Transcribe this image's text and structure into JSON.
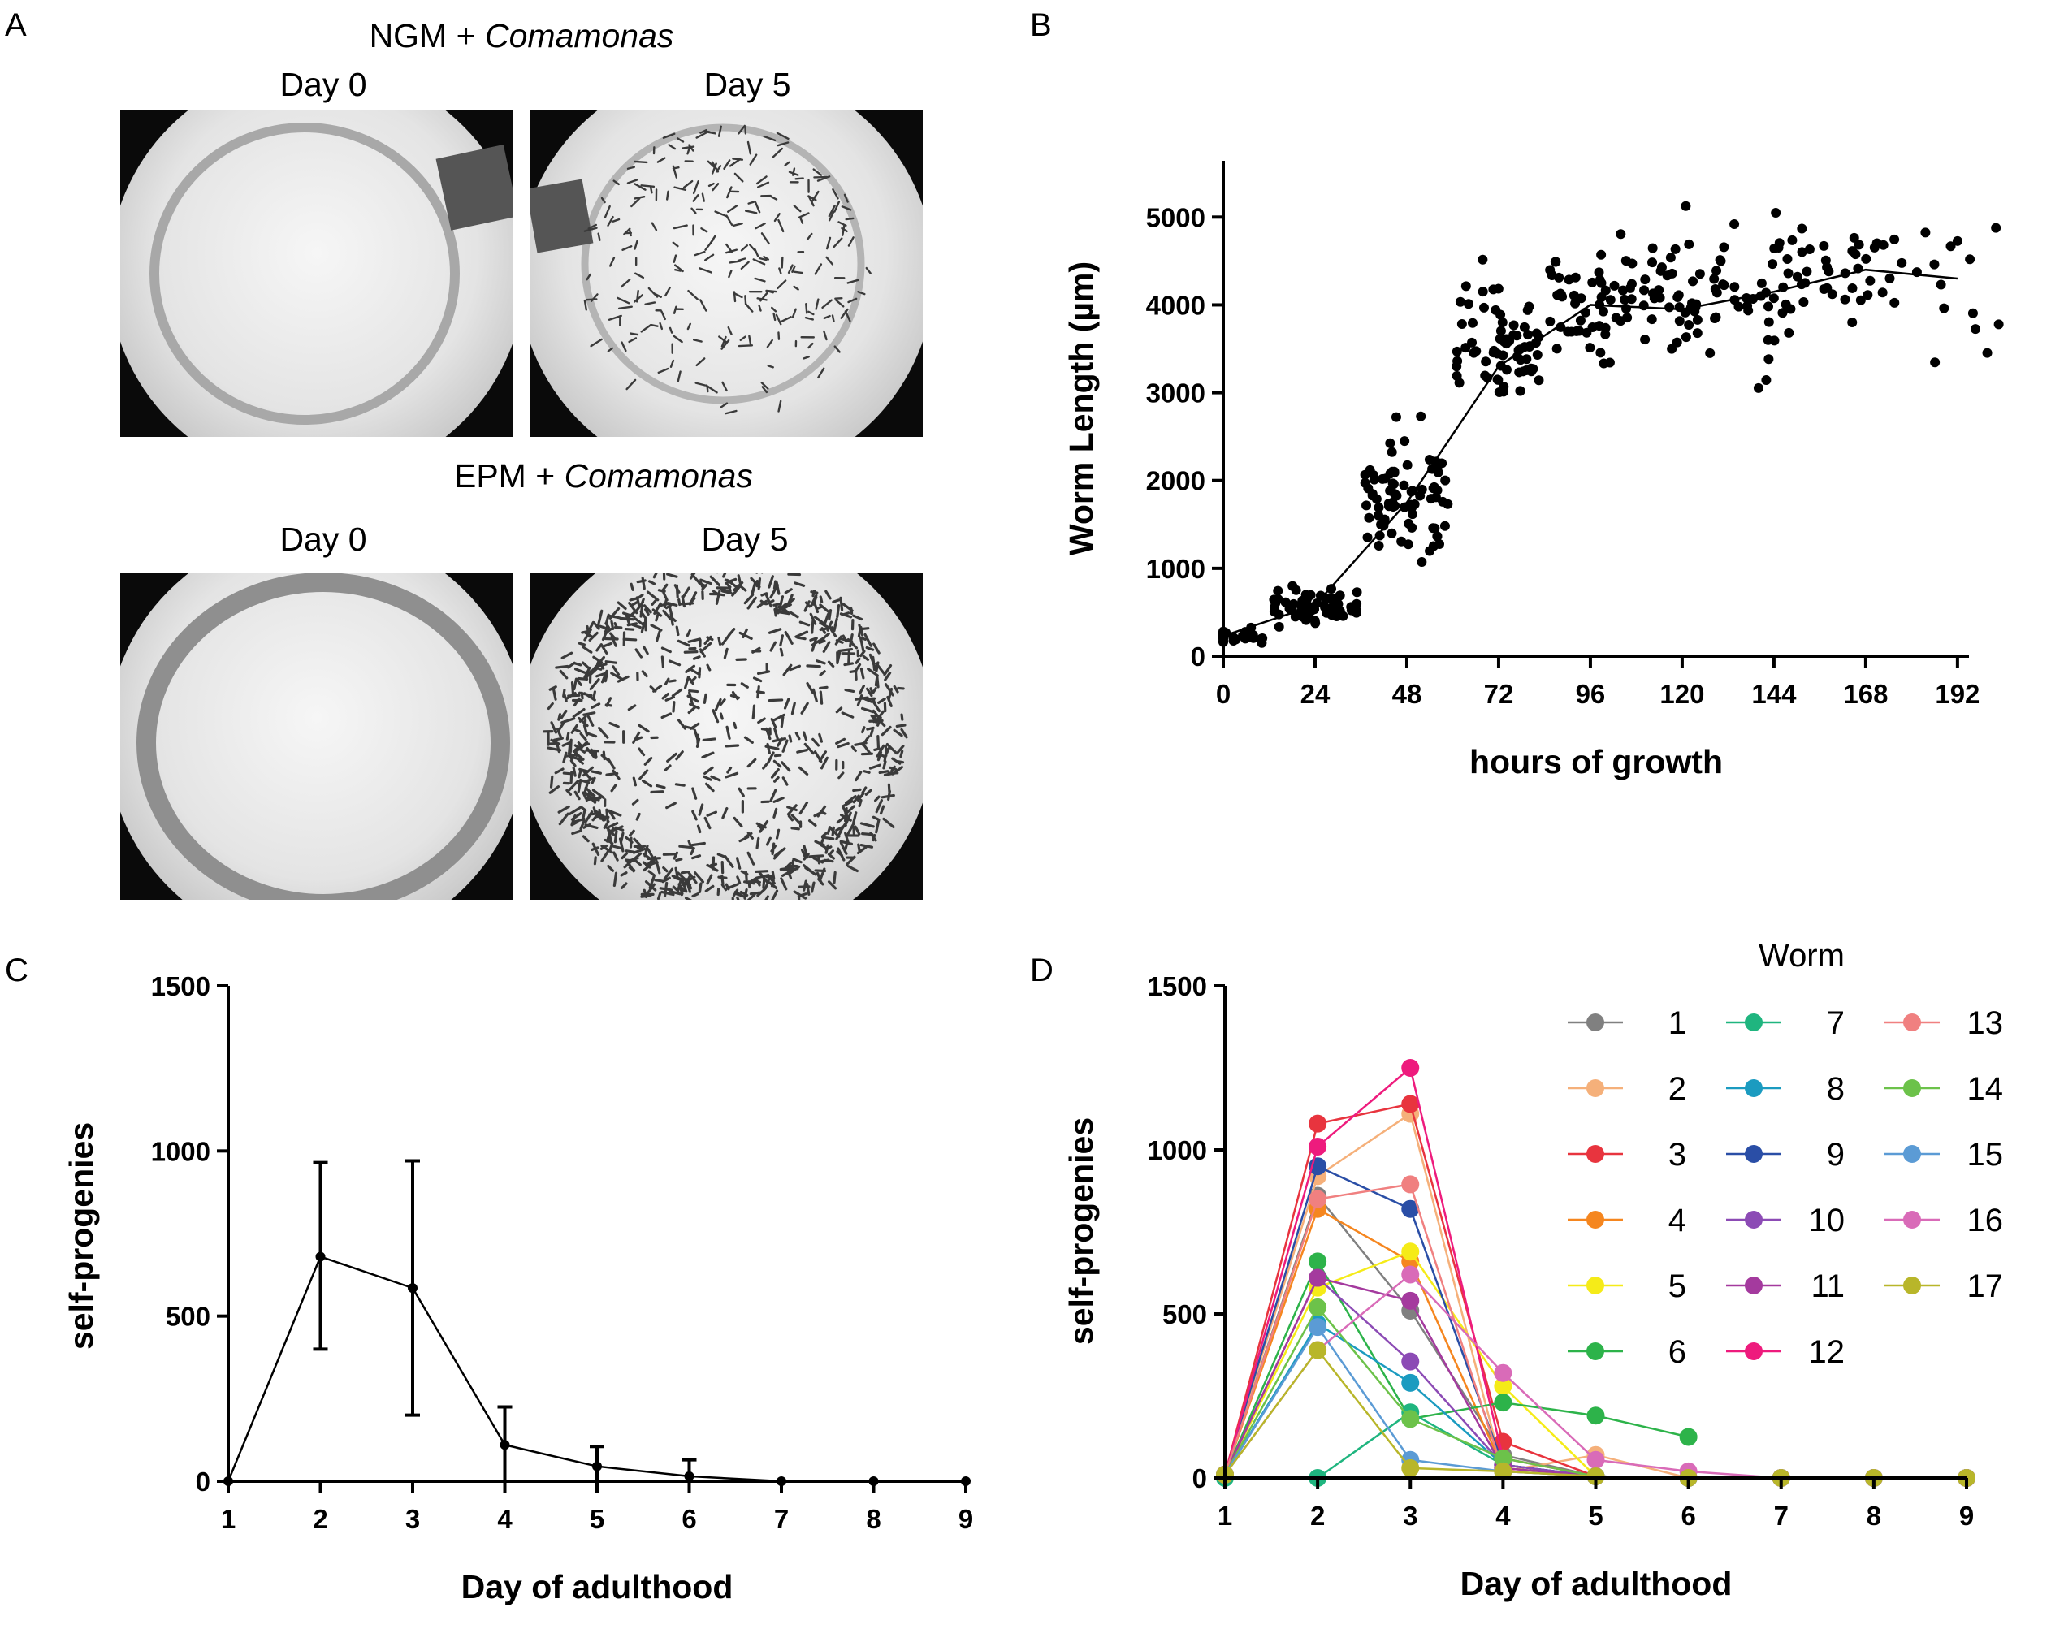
{
  "panels": {
    "a": {
      "letter": "A",
      "ngm_title_prefix": "NGM + ",
      "ngm_title_species": "Comamonas",
      "epm_title_prefix": "EPM + ",
      "epm_title_species": "Comamonas",
      "day0_label": "Day 0",
      "day5_label": "Day 5",
      "images": [
        {
          "name": "ngm-day0",
          "condition": "NGM",
          "day": 0,
          "worm_density": 0.0
        },
        {
          "name": "ngm-day5",
          "condition": "NGM",
          "day": 5,
          "worm_density": 0.35
        },
        {
          "name": "epm-day0",
          "condition": "EPM",
          "day": 0,
          "worm_density": 0.0
        },
        {
          "name": "epm-day5",
          "condition": "EPM",
          "day": 5,
          "worm_density": 1.0
        }
      ]
    },
    "b": {
      "letter": "B"
    },
    "c": {
      "letter": "C"
    },
    "d": {
      "letter": "D"
    }
  },
  "chart_data": [
    {
      "panel": "B",
      "type": "scatter",
      "xlabel": "hours of growth",
      "ylabel": "Worm Length (µm)",
      "xlim": [
        0,
        195
      ],
      "ylim": [
        0,
        5500
      ],
      "x_ticks": [
        0,
        24,
        48,
        72,
        96,
        120,
        144,
        168,
        192
      ],
      "y_ticks": [
        0,
        1000,
        2000,
        3000,
        4000,
        5000
      ],
      "marker_color": "#000000",
      "groups": [
        {
          "hours": 0,
          "n": 32,
          "center": 230,
          "sd": 45
        },
        {
          "hours": 24,
          "n": 70,
          "center": 600,
          "sd": 100
        },
        {
          "hours": 48,
          "n": 80,
          "center": 1800,
          "sd": 330
        },
        {
          "hours": 72,
          "n": 70,
          "center": 3600,
          "sd": 380
        },
        {
          "hours": 96,
          "n": 55,
          "center": 4050,
          "sd": 330
        },
        {
          "hours": 120,
          "n": 50,
          "center": 4000,
          "sd": 330
        },
        {
          "hours": 144,
          "n": 40,
          "center": 4150,
          "sd": 450
        },
        {
          "hours": 168,
          "n": 28,
          "center": 4350,
          "sd": 380
        },
        {
          "hours": 192,
          "n": 14,
          "center": 4300,
          "sd": 500
        }
      ],
      "mean_line": {
        "x": [
          0,
          24,
          48,
          72,
          96,
          120,
          144,
          168,
          192
        ],
        "y": [
          230,
          580,
          1750,
          3300,
          4000,
          3950,
          4150,
          4400,
          4300
        ]
      }
    },
    {
      "panel": "C",
      "type": "line",
      "xlabel": "Day of adulthood",
      "ylabel": "self-progenies",
      "xlim": [
        1,
        9
      ],
      "ylim": [
        0,
        1500
      ],
      "x_ticks": [
        1,
        2,
        3,
        4,
        5,
        6,
        7,
        8,
        9
      ],
      "y_ticks": [
        0,
        500,
        1000,
        1500
      ],
      "x": [
        1,
        2,
        3,
        4,
        5,
        6,
        7,
        8,
        9
      ],
      "y": [
        0,
        680,
        585,
        110,
        45,
        15,
        0,
        0,
        0
      ],
      "error_lower": [
        0,
        400,
        200,
        0,
        0,
        0,
        0,
        0,
        0
      ],
      "error_upper": [
        0,
        965,
        970,
        225,
        105,
        65,
        0,
        0,
        0
      ]
    },
    {
      "panel": "D",
      "type": "line",
      "xlabel": "Day of adulthood",
      "ylabel": "self-progenies",
      "xlim": [
        1,
        9
      ],
      "ylim": [
        0,
        1500
      ],
      "x_ticks": [
        1,
        2,
        3,
        4,
        5,
        6,
        7,
        8,
        9
      ],
      "y_ticks": [
        0,
        500,
        1000,
        1500
      ],
      "legend_title": "Worm",
      "legend_position": "top-right",
      "x": [
        1,
        2,
        3,
        4,
        5,
        6,
        7,
        8,
        9
      ],
      "series": [
        {
          "name": "1",
          "color": "#808080",
          "values": [
            10,
            860,
            510,
            70,
            5,
            0,
            0,
            0,
            0
          ]
        },
        {
          "name": "2",
          "color": "#F5B07A",
          "values": [
            10,
            920,
            1110,
            20,
            70,
            0,
            0,
            0,
            0
          ]
        },
        {
          "name": "3",
          "color": "#E8343E",
          "values": [
            10,
            1080,
            1140,
            110,
            5,
            0,
            0,
            0,
            0
          ]
        },
        {
          "name": "4",
          "color": "#F5861F",
          "values": [
            10,
            820,
            660,
            30,
            5,
            0,
            0,
            0,
            0
          ]
        },
        {
          "name": "5",
          "color": "#F5EB18",
          "values": [
            10,
            580,
            690,
            280,
            5,
            0,
            0,
            0,
            0
          ]
        },
        {
          "name": "6",
          "color": "#2DB34A",
          "values": [
            10,
            660,
            180,
            230,
            190,
            125,
            null,
            null,
            null
          ]
        },
        {
          "name": "7",
          "color": "#1FB57F",
          "values": [
            0,
            0,
            200,
            40,
            5,
            0,
            0,
            0,
            0
          ]
        },
        {
          "name": "8",
          "color": "#1B9BC0",
          "values": [
            10,
            470,
            290,
            40,
            5,
            0,
            0,
            0,
            0
          ]
        },
        {
          "name": "9",
          "color": "#2A4EA6",
          "values": [
            10,
            950,
            820,
            40,
            5,
            0,
            0,
            0,
            0
          ]
        },
        {
          "name": "10",
          "color": "#8C4BB5",
          "values": [
            10,
            610,
            355,
            40,
            5,
            0,
            0,
            0,
            0
          ]
        },
        {
          "name": "11",
          "color": "#A43A9E",
          "values": [
            10,
            610,
            540,
            30,
            5,
            0,
            0,
            0,
            0
          ]
        },
        {
          "name": "12",
          "color": "#EE1B7D",
          "values": [
            10,
            1010,
            1250,
            60,
            5,
            0,
            0,
            0,
            0
          ]
        },
        {
          "name": "13",
          "color": "#F08080",
          "values": [
            10,
            850,
            895,
            20,
            5,
            0,
            0,
            0,
            0
          ]
        },
        {
          "name": "14",
          "color": "#6CC24A",
          "values": [
            10,
            520,
            180,
            60,
            5,
            0,
            0,
            0,
            0
          ]
        },
        {
          "name": "15",
          "color": "#5B9BD5",
          "values": [
            10,
            460,
            55,
            20,
            5,
            0,
            0,
            0,
            0
          ]
        },
        {
          "name": "16",
          "color": "#D96BB8",
          "values": [
            10,
            390,
            620,
            320,
            55,
            20,
            0,
            0,
            0
          ]
        },
        {
          "name": "17",
          "color": "#B8B62A",
          "values": [
            10,
            390,
            30,
            20,
            5,
            0,
            0,
            0,
            0
          ]
        }
      ]
    }
  ]
}
